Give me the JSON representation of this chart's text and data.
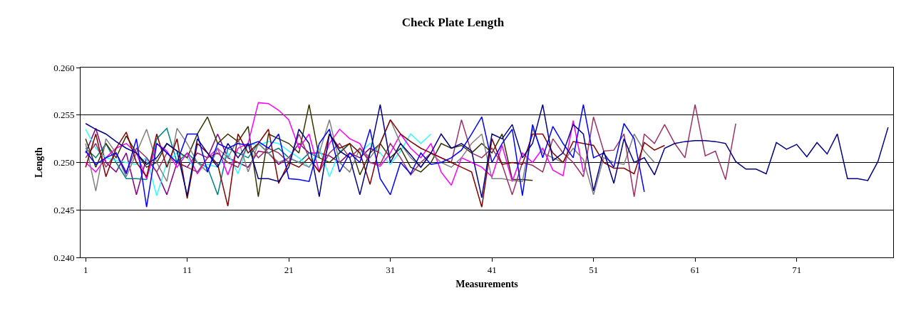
{
  "chart_data": {
    "type": "line",
    "title": "Check Plate Length",
    "xlabel": "Measurements",
    "ylabel": "Length",
    "categories": [
      "1",
      null,
      null,
      null,
      null,
      null,
      null,
      null,
      null,
      null,
      "11",
      null,
      null,
      null,
      null,
      null,
      null,
      null,
      null,
      null,
      "21",
      null,
      null,
      null,
      null,
      null,
      null,
      null,
      null,
      null,
      "31",
      null,
      null,
      null,
      null,
      null,
      null,
      null,
      null,
      null,
      "41",
      null,
      null,
      null,
      null,
      null,
      null,
      null,
      null,
      null,
      "51",
      null,
      null,
      null,
      null,
      null,
      null,
      null,
      null,
      null,
      "61",
      null,
      null,
      null,
      null,
      null,
      null,
      null,
      null,
      null,
      "71",
      null,
      null,
      null,
      null,
      null,
      null,
      null,
      null,
      null
    ],
    "ylim": [
      0.24,
      0.26
    ],
    "yticks": [
      {
        "value": 0.24,
        "label": "0.240"
      },
      {
        "value": 0.245,
        "label": "0.245"
      },
      {
        "value": 0.25,
        "label": "0.250"
      },
      {
        "value": 0.255,
        "label": "0.255"
      },
      {
        "value": 0.26,
        "label": "0.260"
      }
    ],
    "grid": "y",
    "marker": "none",
    "line_style": "solid",
    "series": [
      {
        "color": "#800080",
        "values": [
          0.251,
          0.2536,
          0.25,
          0.249,
          0.251,
          0.2466,
          0.2505,
          0.249,
          0.2466,
          0.25,
          0.2495,
          0.251,
          0.2505,
          0.253,
          0.2505,
          0.25,
          0.2495,
          0.2512,
          0.251,
          0.2498,
          0.2505,
          0.252,
          0.251,
          0.251,
          0.2507,
          0.25,
          0.251,
          0.2505,
          0.2515,
          0.251,
          null,
          null,
          null,
          null,
          null,
          null,
          null,
          null,
          null,
          null,
          null,
          null,
          null,
          null,
          null,
          null,
          null,
          null,
          null,
          null,
          null,
          null,
          null,
          null,
          null,
          null,
          null,
          null,
          null,
          null,
          null,
          null,
          null,
          null,
          null,
          null,
          null,
          null,
          null,
          null,
          null,
          null,
          null,
          null,
          null,
          null,
          null,
          null,
          null,
          null
        ]
      },
      {
        "color": "#008080",
        "values": [
          0.2515,
          0.2505,
          0.252,
          0.25,
          0.2483,
          0.2483,
          0.2482,
          0.2525,
          0.2536,
          0.25,
          0.251,
          0.25,
          0.2495,
          0.2466,
          0.2515,
          0.251,
          0.2505,
          0.252,
          0.251,
          0.2515,
          0.2505,
          0.25,
          0.251,
          0.2505,
          null,
          null,
          null,
          null,
          null,
          null,
          null,
          null,
          null,
          null,
          null,
          null,
          null,
          null,
          null,
          null,
          null,
          null,
          null,
          null,
          null,
          null,
          null,
          null,
          null,
          null,
          null,
          null,
          null,
          null,
          null,
          null,
          null,
          null,
          null,
          null,
          null,
          null,
          null,
          null,
          null,
          null,
          null,
          null,
          null,
          null,
          null,
          null,
          null,
          null,
          null,
          null,
          null,
          null,
          null,
          null
        ]
      },
      {
        "color": "#33ffff",
        "values": [
          0.2535,
          0.2515,
          0.2505,
          0.2502,
          0.25,
          0.2498,
          0.2505,
          0.2465,
          0.25,
          0.251,
          0.2505,
          0.249,
          0.2498,
          0.2495,
          0.251,
          0.2488,
          0.252,
          0.2518,
          0.2522,
          0.252,
          0.2512,
          0.2505,
          0.2495,
          0.2515,
          0.2485,
          0.2512,
          0.252,
          0.251,
          0.252,
          0.251,
          0.2498,
          0.2512,
          0.253,
          0.252,
          0.253,
          null,
          null,
          null,
          null,
          null,
          null,
          null,
          null,
          null,
          null,
          null,
          null,
          null,
          null,
          null,
          null,
          null,
          null,
          null,
          null,
          null,
          null,
          null,
          null,
          null,
          null,
          null,
          null,
          null,
          null,
          null,
          null,
          null,
          null,
          null,
          null,
          null,
          null,
          null,
          null,
          null,
          null,
          null,
          null,
          null
        ]
      },
      {
        "color": "#333300",
        "values": [
          0.2525,
          0.2495,
          0.252,
          0.2505,
          0.2528,
          0.251,
          0.2495,
          0.25,
          0.252,
          0.2512,
          0.2505,
          0.253,
          0.2548,
          0.252,
          0.253,
          0.2522,
          0.2538,
          0.2464,
          0.253,
          0.2525,
          0.252,
          0.251,
          0.2561,
          0.2505,
          0.25,
          0.251,
          0.252,
          0.2487,
          0.251,
          0.252,
          0.2505,
          0.2515,
          0.2495,
          0.249,
          0.25,
          0.252,
          0.2515,
          0.2518,
          0.251,
          0.252,
          0.251,
          0.253,
          0.2482,
          0.2482,
          0.2481,
          null,
          null,
          null,
          null,
          null,
          null,
          null,
          null,
          null,
          null,
          null,
          null,
          null,
          null,
          null,
          null,
          null,
          null,
          null,
          null,
          null,
          null,
          null,
          null,
          null,
          null,
          null,
          null,
          null,
          null,
          null,
          null,
          null,
          null,
          null
        ]
      },
      {
        "color": "#ff00ff",
        "values": [
          0.25,
          0.249,
          0.2505,
          0.2515,
          0.252,
          0.251,
          0.2483,
          0.252,
          0.2512,
          0.2495,
          0.251,
          0.2488,
          0.2505,
          0.2515,
          0.2487,
          0.2515,
          0.252,
          0.2563,
          0.2562,
          0.2555,
          0.2545,
          0.2515,
          0.253,
          0.249,
          0.252,
          0.2535,
          0.2525,
          0.252,
          0.25,
          0.2496,
          0.251,
          0.253,
          0.2515,
          0.2505,
          0.252,
          0.249,
          0.2476,
          0.2505,
          0.25,
          0.2495,
          0.2485,
          0.2518,
          0.248,
          0.251,
          0.25,
          0.2515,
          0.2492,
          0.2486,
          0.2544,
          0.249,
          null,
          null,
          null,
          null,
          null,
          null,
          null,
          null,
          null,
          null,
          null,
          null,
          null,
          null,
          null,
          null,
          null,
          null,
          null,
          null,
          null,
          null,
          null,
          null,
          null,
          null,
          null,
          null,
          null,
          null
        ]
      },
      {
        "color": "#808080",
        "values": [
          0.252,
          0.247,
          0.2525,
          0.251,
          0.2485,
          0.251,
          0.2535,
          0.25,
          0.248,
          0.2536,
          0.252,
          0.25,
          0.249,
          0.2515,
          0.2505,
          0.2525,
          0.249,
          0.252,
          0.251,
          0.25,
          0.2505,
          0.25,
          0.2495,
          0.251,
          0.2545,
          0.25,
          0.249,
          0.2515,
          0.2505,
          0.252,
          0.2545,
          0.252,
          0.2505,
          0.2495,
          0.251,
          0.25,
          0.2495,
          0.2505,
          0.252,
          0.253,
          0.2483,
          0.2483,
          0.2481,
          0.248,
          0.2536,
          0.251,
          0.2505,
          0.25,
          0.2515,
          0.2503,
          0.2466,
          0.2505,
          0.25,
          0.2498,
          0.253,
          0.2512,
          0.25,
          null,
          null,
          null,
          null,
          null,
          null,
          null,
          null,
          null,
          null,
          null,
          null,
          null,
          null,
          null,
          null,
          null,
          null,
          null,
          null,
          null,
          null,
          null
        ]
      },
      {
        "color": "#993366",
        "values": [
          0.2505,
          0.252,
          0.2495,
          0.251,
          0.249,
          0.2515,
          0.2505,
          0.249,
          0.251,
          0.25,
          0.2495,
          0.249,
          0.2505,
          0.251,
          0.25,
          0.2495,
          0.252,
          0.2505,
          0.2515,
          0.251,
          0.25,
          0.253,
          0.2505,
          0.249,
          0.251,
          0.252,
          0.2505,
          0.2515,
          0.25,
          0.2498,
          0.252,
          0.2505,
          0.2487,
          0.25,
          0.251,
          0.2505,
          0.25,
          0.2545,
          0.251,
          0.2505,
          0.2515,
          0.2498,
          0.2466,
          0.25,
          0.2497,
          0.249,
          0.2525,
          0.251,
          0.25,
          0.2485,
          0.2548,
          0.2512,
          0.2513,
          0.253,
          0.2464,
          0.253,
          0.252,
          0.254,
          0.252,
          0.2505,
          0.2561,
          0.2507,
          0.2512,
          0.2482,
          0.2541,
          null,
          null,
          null,
          null,
          null,
          null,
          null,
          null,
          null,
          null,
          null,
          null,
          null,
          null,
          null
        ]
      },
      {
        "color": "#800000",
        "values": [
          0.2495,
          0.253,
          0.2485,
          0.2515,
          0.2532,
          0.25,
          0.2485,
          0.253,
          0.2495,
          0.2525,
          0.2462,
          0.252,
          0.251,
          0.2498,
          0.2454,
          0.253,
          0.251,
          0.252,
          0.2535,
          0.2478,
          0.25,
          0.2495,
          0.2505,
          0.249,
          0.253,
          0.2515,
          0.252,
          0.251,
          0.2477,
          0.252,
          0.2545,
          0.253,
          0.2522,
          0.2515,
          0.251,
          0.2505,
          0.25,
          0.2495,
          0.249,
          0.2453,
          0.2525,
          0.2498,
          0.25,
          0.2498,
          0.253,
          0.253,
          0.251,
          0.25,
          0.2522,
          0.252,
          0.2518,
          0.25,
          0.2494,
          0.2494,
          0.2488,
          0.2521,
          0.2513,
          0.2518,
          null,
          null,
          null,
          null,
          null,
          null,
          null,
          null,
          null,
          null,
          null,
          null,
          null,
          null,
          null,
          null,
          null,
          null,
          null,
          null,
          null,
          null
        ]
      },
      {
        "color": "#0000ff",
        "values": [
          0.2512,
          0.2498,
          0.2505,
          0.251,
          0.2488,
          0.2525,
          0.2453,
          0.252,
          0.251,
          0.25,
          0.253,
          0.253,
          0.249,
          0.252,
          0.2515,
          0.252,
          0.2518,
          0.2522,
          0.2515,
          0.253,
          0.2483,
          0.2482,
          0.248,
          0.252,
          0.2535,
          0.249,
          0.251,
          0.25,
          0.2535,
          0.2483,
          0.2466,
          0.25,
          0.2488,
          0.251,
          0.2498,
          0.25,
          0.2505,
          0.2513,
          0.253,
          0.2548,
          0.25,
          0.252,
          0.2535,
          0.2465,
          0.254,
          0.2505,
          0.2538,
          0.252,
          0.2505,
          0.2561,
          0.2505,
          0.251,
          0.2495,
          0.2541,
          0.2525,
          0.2469,
          null,
          null,
          null,
          null,
          null,
          null,
          null,
          null,
          null,
          null,
          null,
          null,
          null,
          null,
          null,
          null,
          null,
          null,
          null,
          null,
          null,
          null,
          null,
          null
        ]
      },
      {
        "color": "#000080",
        "values": [
          0.2541,
          0.2535,
          0.253,
          0.2522,
          0.2515,
          0.251,
          0.2498,
          0.2505,
          0.252,
          0.2512,
          0.2465,
          0.2525,
          0.251,
          0.2495,
          0.252,
          0.2505,
          0.252,
          0.2483,
          0.2483,
          0.248,
          0.2495,
          0.2535,
          0.252,
          0.2464,
          0.253,
          0.2512,
          0.2505,
          0.2466,
          0.251,
          0.2561,
          0.25,
          0.252,
          0.2508,
          0.2495,
          0.251,
          0.253,
          0.2515,
          0.252,
          0.2512,
          0.2463,
          0.253,
          0.2525,
          0.254,
          0.2505,
          0.252,
          0.2561,
          0.2502,
          0.251,
          0.254,
          0.253,
          0.247,
          0.2512,
          0.2478,
          0.2525,
          0.25,
          0.2505,
          0.2487,
          0.2515,
          0.252,
          0.2522,
          0.2523,
          0.2523,
          0.2522,
          0.252,
          0.2501,
          0.2493,
          0.2493,
          0.2488,
          0.2521,
          0.2514,
          0.2519,
          0.2506,
          0.2521,
          0.2509,
          0.253,
          0.2483,
          0.2483,
          0.2481,
          0.2501,
          0.2537
        ]
      }
    ]
  }
}
